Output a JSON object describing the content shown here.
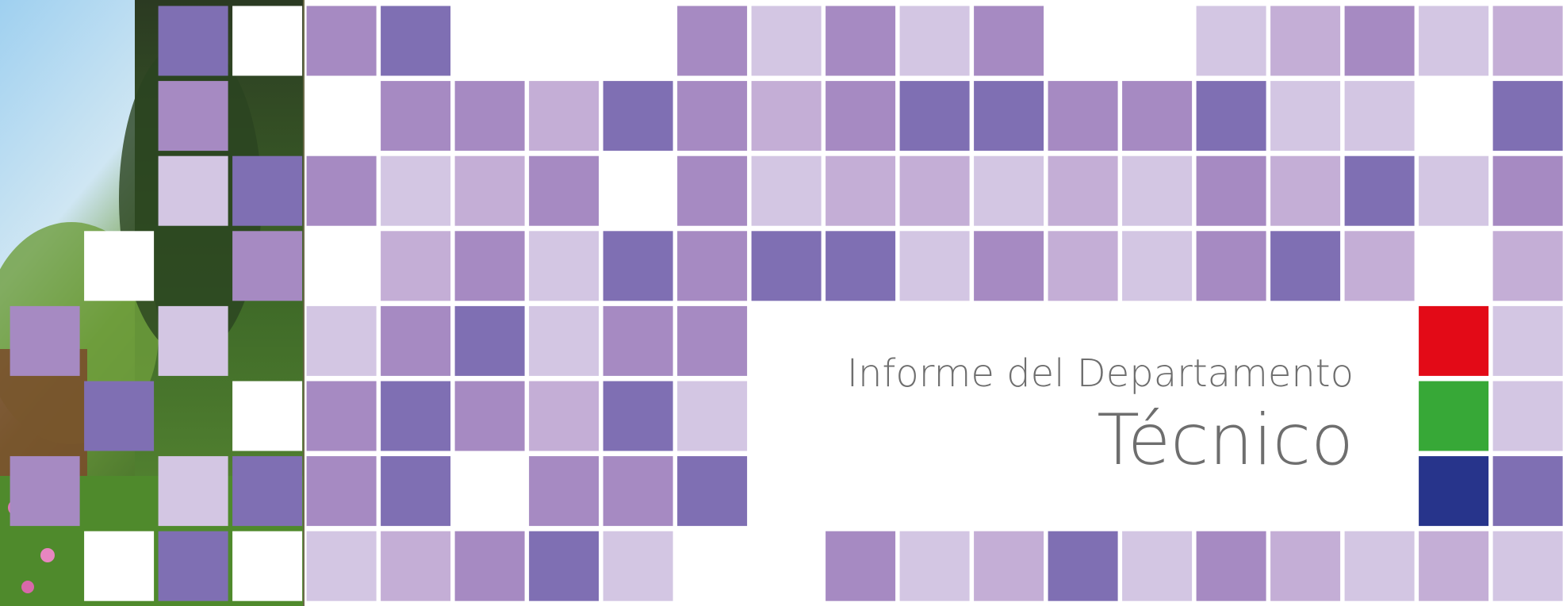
{
  "header": {
    "subtitle": "Informe del Departamento",
    "title": "Técnico"
  }
}
